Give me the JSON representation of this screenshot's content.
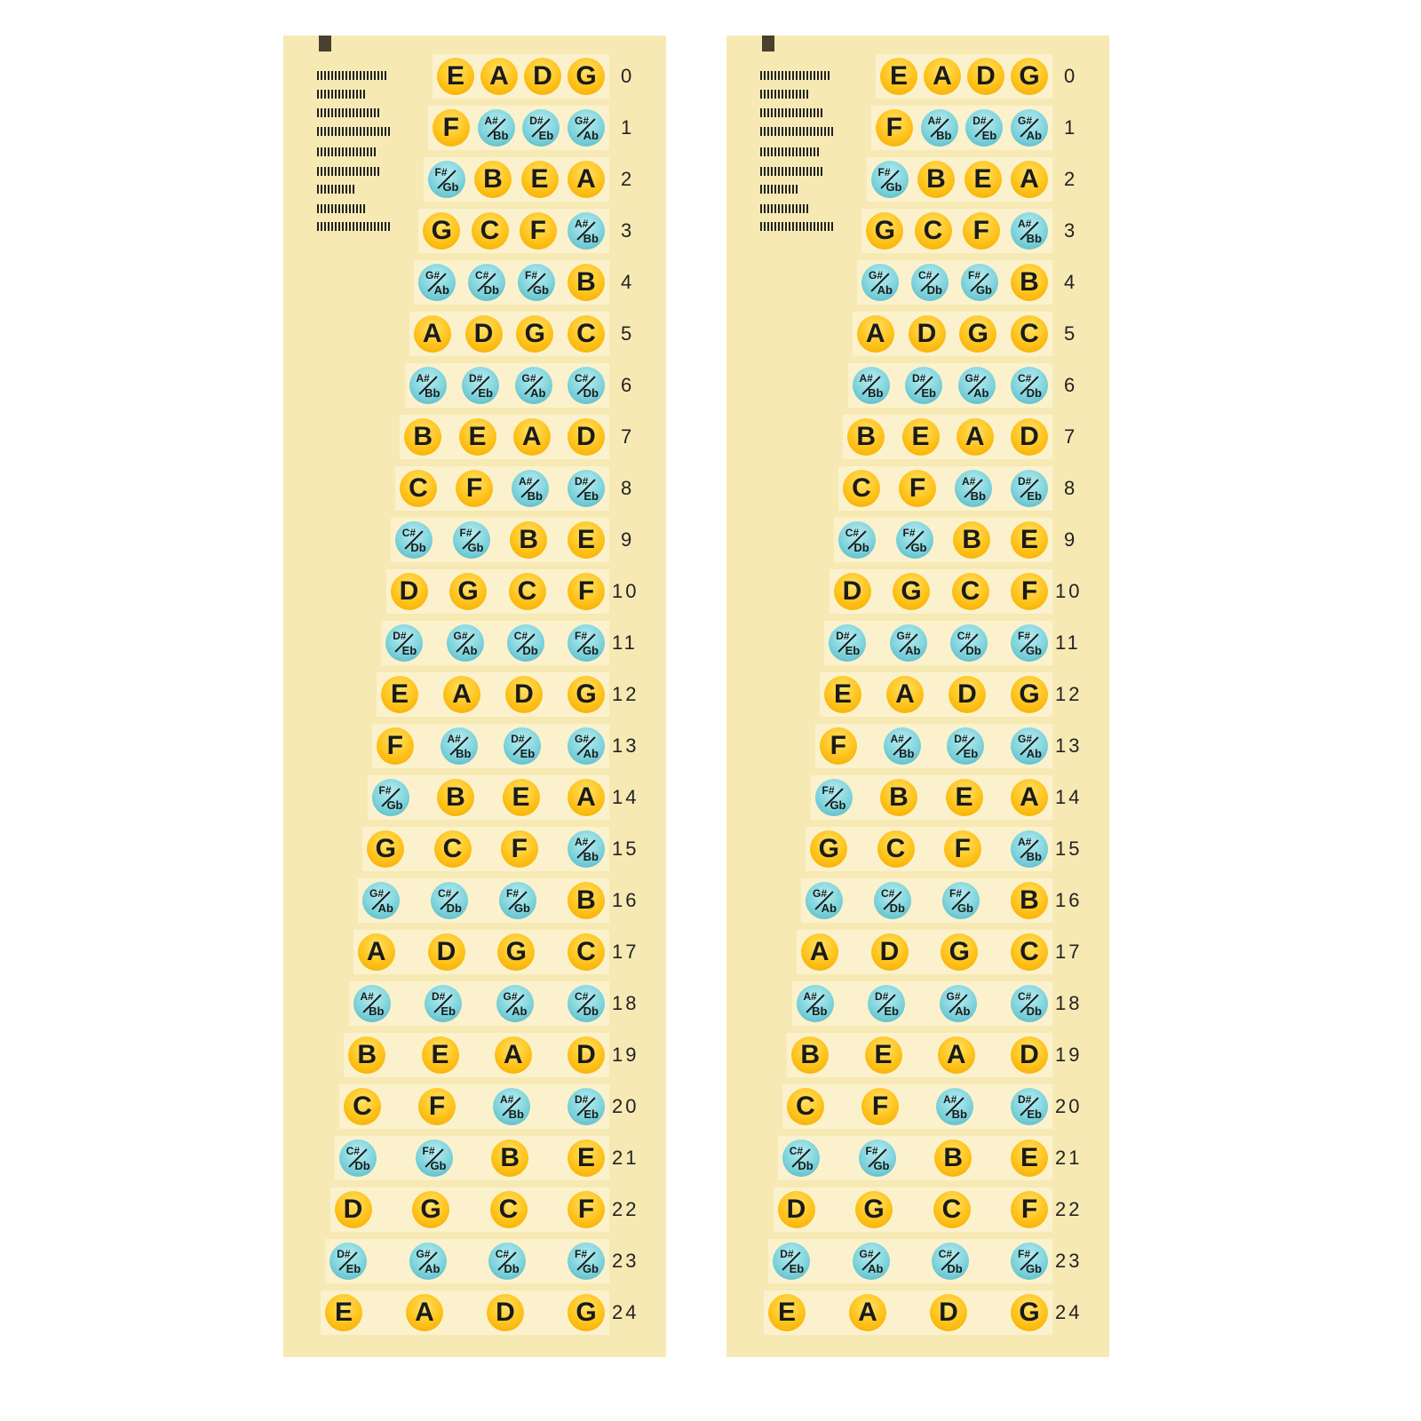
{
  "fret_chart": {
    "strings": [
      "E",
      "A",
      "D",
      "G"
    ],
    "natural_color": "#ffc21a",
    "accidental_color": "#7fd3dc",
    "background_color": "#f7e9b4",
    "rows": [
      {
        "fret": "0",
        "notes": [
          {
            "n": "E"
          },
          {
            "n": "A"
          },
          {
            "n": "D"
          },
          {
            "n": "G"
          }
        ]
      },
      {
        "fret": "1",
        "notes": [
          {
            "n": "F"
          },
          {
            "sharp": "A#",
            "flat": "Bb"
          },
          {
            "sharp": "D#",
            "flat": "Eb"
          },
          {
            "sharp": "G#",
            "flat": "Ab"
          }
        ]
      },
      {
        "fret": "2",
        "notes": [
          {
            "sharp": "F#",
            "flat": "Gb"
          },
          {
            "n": "B"
          },
          {
            "n": "E"
          },
          {
            "n": "A"
          }
        ]
      },
      {
        "fret": "3",
        "notes": [
          {
            "n": "G"
          },
          {
            "n": "C"
          },
          {
            "n": "F"
          },
          {
            "sharp": "A#",
            "flat": "Bb"
          }
        ]
      },
      {
        "fret": "4",
        "notes": [
          {
            "sharp": "G#",
            "flat": "Ab"
          },
          {
            "sharp": "C#",
            "flat": "Db"
          },
          {
            "sharp": "F#",
            "flat": "Gb"
          },
          {
            "n": "B"
          }
        ]
      },
      {
        "fret": "5",
        "notes": [
          {
            "n": "A"
          },
          {
            "n": "D"
          },
          {
            "n": "G"
          },
          {
            "n": "C"
          }
        ]
      },
      {
        "fret": "6",
        "notes": [
          {
            "sharp": "A#",
            "flat": "Bb"
          },
          {
            "sharp": "D#",
            "flat": "Eb"
          },
          {
            "sharp": "G#",
            "flat": "Ab"
          },
          {
            "sharp": "C#",
            "flat": "Db"
          }
        ]
      },
      {
        "fret": "7",
        "notes": [
          {
            "n": "B"
          },
          {
            "n": "E"
          },
          {
            "n": "A"
          },
          {
            "n": "D"
          }
        ]
      },
      {
        "fret": "8",
        "notes": [
          {
            "n": "C"
          },
          {
            "n": "F"
          },
          {
            "sharp": "A#",
            "flat": "Bb"
          },
          {
            "sharp": "D#",
            "flat": "Eb"
          }
        ]
      },
      {
        "fret": "9",
        "notes": [
          {
            "sharp": "C#",
            "flat": "Db"
          },
          {
            "sharp": "F#",
            "flat": "Gb"
          },
          {
            "n": "B"
          },
          {
            "n": "E"
          }
        ]
      },
      {
        "fret": "10",
        "notes": [
          {
            "n": "D"
          },
          {
            "n": "G"
          },
          {
            "n": "C"
          },
          {
            "n": "F"
          }
        ]
      },
      {
        "fret": "11",
        "notes": [
          {
            "sharp": "D#",
            "flat": "Eb"
          },
          {
            "sharp": "G#",
            "flat": "Ab"
          },
          {
            "sharp": "C#",
            "flat": "Db"
          },
          {
            "sharp": "F#",
            "flat": "Gb"
          }
        ]
      },
      {
        "fret": "12",
        "notes": [
          {
            "n": "E"
          },
          {
            "n": "A"
          },
          {
            "n": "D"
          },
          {
            "n": "G"
          }
        ]
      },
      {
        "fret": "13",
        "notes": [
          {
            "n": "F"
          },
          {
            "sharp": "A#",
            "flat": "Bb"
          },
          {
            "sharp": "D#",
            "flat": "Eb"
          },
          {
            "sharp": "G#",
            "flat": "Ab"
          }
        ]
      },
      {
        "fret": "14",
        "notes": [
          {
            "sharp": "F#",
            "flat": "Gb"
          },
          {
            "n": "B"
          },
          {
            "n": "E"
          },
          {
            "n": "A"
          }
        ]
      },
      {
        "fret": "15",
        "notes": [
          {
            "n": "G"
          },
          {
            "n": "C"
          },
          {
            "n": "F"
          },
          {
            "sharp": "A#",
            "flat": "Bb"
          }
        ]
      },
      {
        "fret": "16",
        "notes": [
          {
            "sharp": "G#",
            "flat": "Ab"
          },
          {
            "sharp": "C#",
            "flat": "Db"
          },
          {
            "sharp": "F#",
            "flat": "Gb"
          },
          {
            "n": "B"
          }
        ]
      },
      {
        "fret": "17",
        "notes": [
          {
            "n": "A"
          },
          {
            "n": "D"
          },
          {
            "n": "G"
          },
          {
            "n": "C"
          }
        ]
      },
      {
        "fret": "18",
        "notes": [
          {
            "sharp": "A#",
            "flat": "Bb"
          },
          {
            "sharp": "D#",
            "flat": "Eb"
          },
          {
            "sharp": "G#",
            "flat": "Ab"
          },
          {
            "sharp": "C#",
            "flat": "Db"
          }
        ]
      },
      {
        "fret": "19",
        "notes": [
          {
            "n": "B"
          },
          {
            "n": "E"
          },
          {
            "n": "A"
          },
          {
            "n": "D"
          }
        ]
      },
      {
        "fret": "20",
        "notes": [
          {
            "n": "C"
          },
          {
            "n": "F"
          },
          {
            "sharp": "A#",
            "flat": "Bb"
          },
          {
            "sharp": "D#",
            "flat": "Eb"
          }
        ]
      },
      {
        "fret": "21",
        "notes": [
          {
            "sharp": "C#",
            "flat": "Db"
          },
          {
            "sharp": "F#",
            "flat": "Gb"
          },
          {
            "n": "B"
          },
          {
            "n": "E"
          }
        ]
      },
      {
        "fret": "22",
        "notes": [
          {
            "n": "D"
          },
          {
            "n": "G"
          },
          {
            "n": "C"
          },
          {
            "n": "F"
          }
        ]
      },
      {
        "fret": "23",
        "notes": [
          {
            "sharp": "D#",
            "flat": "Eb"
          },
          {
            "sharp": "G#",
            "flat": "Ab"
          },
          {
            "sharp": "C#",
            "flat": "Db"
          },
          {
            "sharp": "F#",
            "flat": "Gb"
          }
        ]
      },
      {
        "fret": "24",
        "notes": [
          {
            "n": "E"
          },
          {
            "n": "A"
          },
          {
            "n": "D"
          },
          {
            "n": "G"
          }
        ]
      }
    ]
  }
}
